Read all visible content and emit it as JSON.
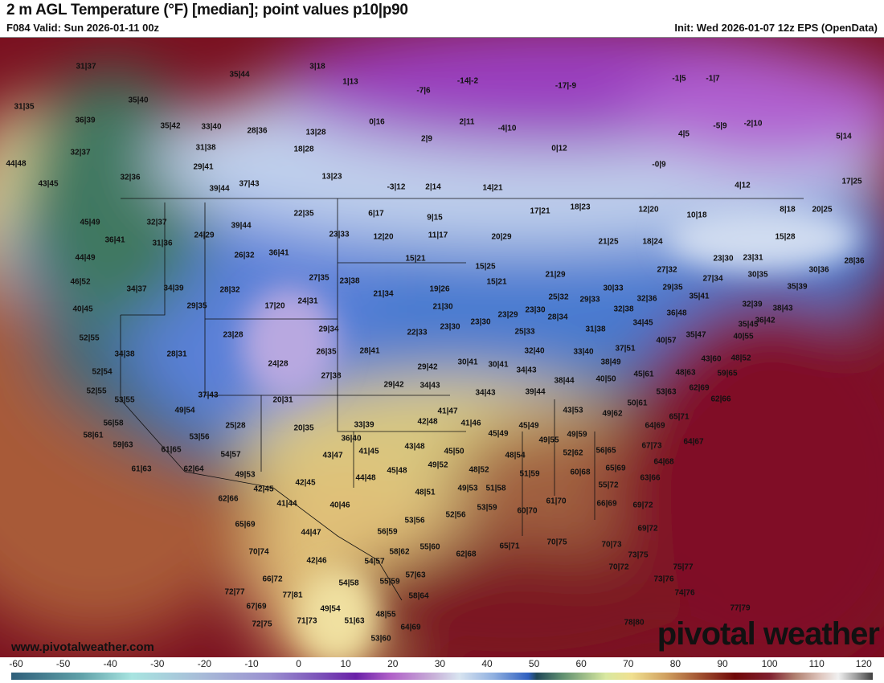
{
  "header": {
    "title": "2 m AGL Temperature (°F) [median]; point values p10|p90",
    "valid": "F084 Valid: Sun 2026-01-11 00z",
    "init": "Init: Wed 2026-01-07 12z EPS (OpenData)"
  },
  "branding": {
    "website": "www.pivotalweather.com",
    "logo": "pivotal weather"
  },
  "colorbar": {
    "unit": "°F",
    "ticks": [
      "-60",
      "-50",
      "-40",
      "-30",
      "-20",
      "-10",
      "0",
      "10",
      "20",
      "30",
      "40",
      "50",
      "60",
      "70",
      "80",
      "90",
      "100",
      "110",
      "120"
    ]
  },
  "point_values": [
    "31|37",
    "35|44",
    "3|18",
    "1|13",
    "-7|6",
    "-14|-2",
    "-17|-9",
    "-1|5",
    "-1|7",
    "31|35",
    "35|40",
    "36|39",
    "35|42",
    "33|40",
    "28|36",
    "13|28",
    "0|16",
    "2|11",
    "-4|10",
    "4|5",
    "-5|9",
    "-2|10",
    "5|14",
    "32|37",
    "31|38",
    "18|28",
    "2|9",
    "0|12",
    "-0|9",
    "44|48",
    "29|41",
    "32|36",
    "13|23",
    "43|45",
    "37|43",
    "39|44",
    "-3|12",
    "2|14",
    "14|21",
    "4|12",
    "17|25",
    "22|35",
    "6|17",
    "9|15",
    "17|21",
    "18|23",
    "12|20",
    "10|18",
    "8|18",
    "20|25",
    "45|49",
    "32|37",
    "39|44",
    "23|33",
    "12|20",
    "11|17",
    "20|29",
    "21|25",
    "18|24",
    "15|28",
    "36|41",
    "31|36",
    "24|29",
    "26|32",
    "36|41",
    "15|21",
    "15|25",
    "21|29",
    "27|32",
    "23|30",
    "23|31",
    "30|36",
    "28|36",
    "44|49",
    "27|35",
    "23|38",
    "19|26",
    "15|21",
    "27|34",
    "30|35",
    "35|39",
    "46|52",
    "34|37",
    "34|39",
    "28|32",
    "17|20",
    "24|31",
    "21|34",
    "21|30",
    "25|32",
    "29|33",
    "30|33",
    "29|35",
    "35|41",
    "32|39",
    "38|43",
    "40|45",
    "29|35",
    "32|36",
    "32|38",
    "36|48",
    "36|42",
    "35|45",
    "52|55",
    "23|28",
    "29|34",
    "22|33",
    "23|30",
    "23|30",
    "23|29",
    "23|30",
    "28|34",
    "34|45",
    "35|47",
    "40|55",
    "34|38",
    "28|31",
    "26|35",
    "28|41",
    "25|33",
    "31|38",
    "40|57",
    "37|51",
    "32|40",
    "33|40",
    "43|60",
    "48|52",
    "52|54",
    "24|28",
    "29|42",
    "30|41",
    "30|41",
    "34|43",
    "38|49",
    "45|61",
    "48|63",
    "59|65",
    "52|55",
    "27|38",
    "29|42",
    "34|43",
    "38|44",
    "40|50",
    "62|69",
    "53|63",
    "53|55",
    "37|43",
    "20|31",
    "34|43",
    "39|44",
    "50|61",
    "62|66",
    "49|54",
    "41|47",
    "43|53",
    "49|62",
    "65|71",
    "56|58",
    "25|28",
    "20|35",
    "33|39",
    "42|48",
    "41|46",
    "45|49",
    "64|69",
    "58|61",
    "53|56",
    "36|40",
    "45|49",
    "49|55",
    "49|59",
    "67|73",
    "64|67",
    "59|63",
    "61|65",
    "54|57",
    "43|47",
    "41|45",
    "43|48",
    "45|50",
    "48|54",
    "52|62",
    "56|65",
    "64|68",
    "61|63",
    "62|64",
    "49|53",
    "45|48",
    "49|52",
    "48|52",
    "51|59",
    "60|68",
    "65|69",
    "63|66",
    "42|45",
    "42|45",
    "44|48",
    "48|51",
    "49|53",
    "51|58",
    "55|72",
    "62|66",
    "41|44",
    "40|46",
    "53|59",
    "60|70",
    "61|70",
    "66|69",
    "69|72",
    "52|56",
    "53|56",
    "65|69",
    "44|47",
    "56|59",
    "69|72",
    "70|74",
    "42|46",
    "58|62",
    "55|60",
    "62|68",
    "65|71",
    "70|75",
    "70|73",
    "73|75",
    "54|57",
    "57|63",
    "70|72",
    "75|77",
    "66|72",
    "54|58",
    "55|59",
    "73|76",
    "72|77",
    "77|81",
    "58|64",
    "74|76",
    "67|69",
    "49|54",
    "48|55",
    "77|79",
    "72|75",
    "71|73",
    "51|63",
    "64|69",
    "78|80",
    "53|60"
  ]
}
